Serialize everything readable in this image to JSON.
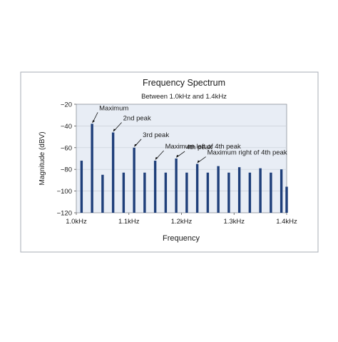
{
  "chart_data": {
    "type": "bar",
    "title": "Frequency Spectrum",
    "subtitle": "Between 1.0kHz and 1.4kHz",
    "xlabel": "Frequency",
    "ylabel": "Magnitude (dBV)",
    "x_unit": "kHz",
    "xlim": [
      1.0,
      1.4
    ],
    "ylim": [
      -120,
      -20
    ],
    "yticks": [
      -20,
      -40,
      -60,
      -80,
      -100,
      -120
    ],
    "xticks": [
      {
        "value": 1.0,
        "label": "1.0kHz"
      },
      {
        "value": 1.1,
        "label": "1.1kHz"
      },
      {
        "value": 1.2,
        "label": "1.2kHz"
      },
      {
        "value": 1.3,
        "label": "1.3kHz"
      },
      {
        "value": 1.4,
        "label": "1.4kHz"
      }
    ],
    "grid": {
      "horizontal": true,
      "vertical": false
    },
    "series": [
      {
        "x": [
          1.0,
          1.01,
          1.02,
          1.03,
          1.04,
          1.05,
          1.06,
          1.07,
          1.08,
          1.09,
          1.1,
          1.11,
          1.12,
          1.13,
          1.14,
          1.15,
          1.16,
          1.17,
          1.18,
          1.19,
          1.2,
          1.21,
          1.22,
          1.23,
          1.24,
          1.25,
          1.26,
          1.27,
          1.28,
          1.29,
          1.3,
          1.31,
          1.32,
          1.33,
          1.34,
          1.35,
          1.36,
          1.37,
          1.38,
          1.39,
          1.4
        ],
        "values": [
          null,
          -72,
          null,
          -38,
          null,
          -85,
          null,
          -46,
          null,
          -83,
          null,
          -60,
          null,
          -83,
          null,
          -72,
          null,
          -83,
          null,
          -70,
          null,
          -83,
          null,
          -75,
          null,
          -83,
          null,
          -77,
          null,
          -83,
          null,
          -78,
          null,
          -83,
          null,
          -79,
          null,
          -83,
          null,
          -80,
          -96
        ]
      }
    ],
    "annotations": [
      {
        "label": "Maximum",
        "x": 1.03,
        "y": -38
      },
      {
        "label": "2nd peak",
        "x": 1.07,
        "y": -46
      },
      {
        "label": "3rd peak",
        "x": 1.11,
        "y": -60
      },
      {
        "label": "Maximum left of 4th peak",
        "x": 1.15,
        "y": -72
      },
      {
        "label": "4th peak",
        "x": 1.19,
        "y": -70
      },
      {
        "label": "Maximum right of 4th peak",
        "x": 1.23,
        "y": -75
      }
    ],
    "colors": {
      "bar": "#1f3f7a",
      "plot_background": "#e8edf5",
      "frame": "#a7acb5",
      "grid": "#c9ced8"
    }
  }
}
